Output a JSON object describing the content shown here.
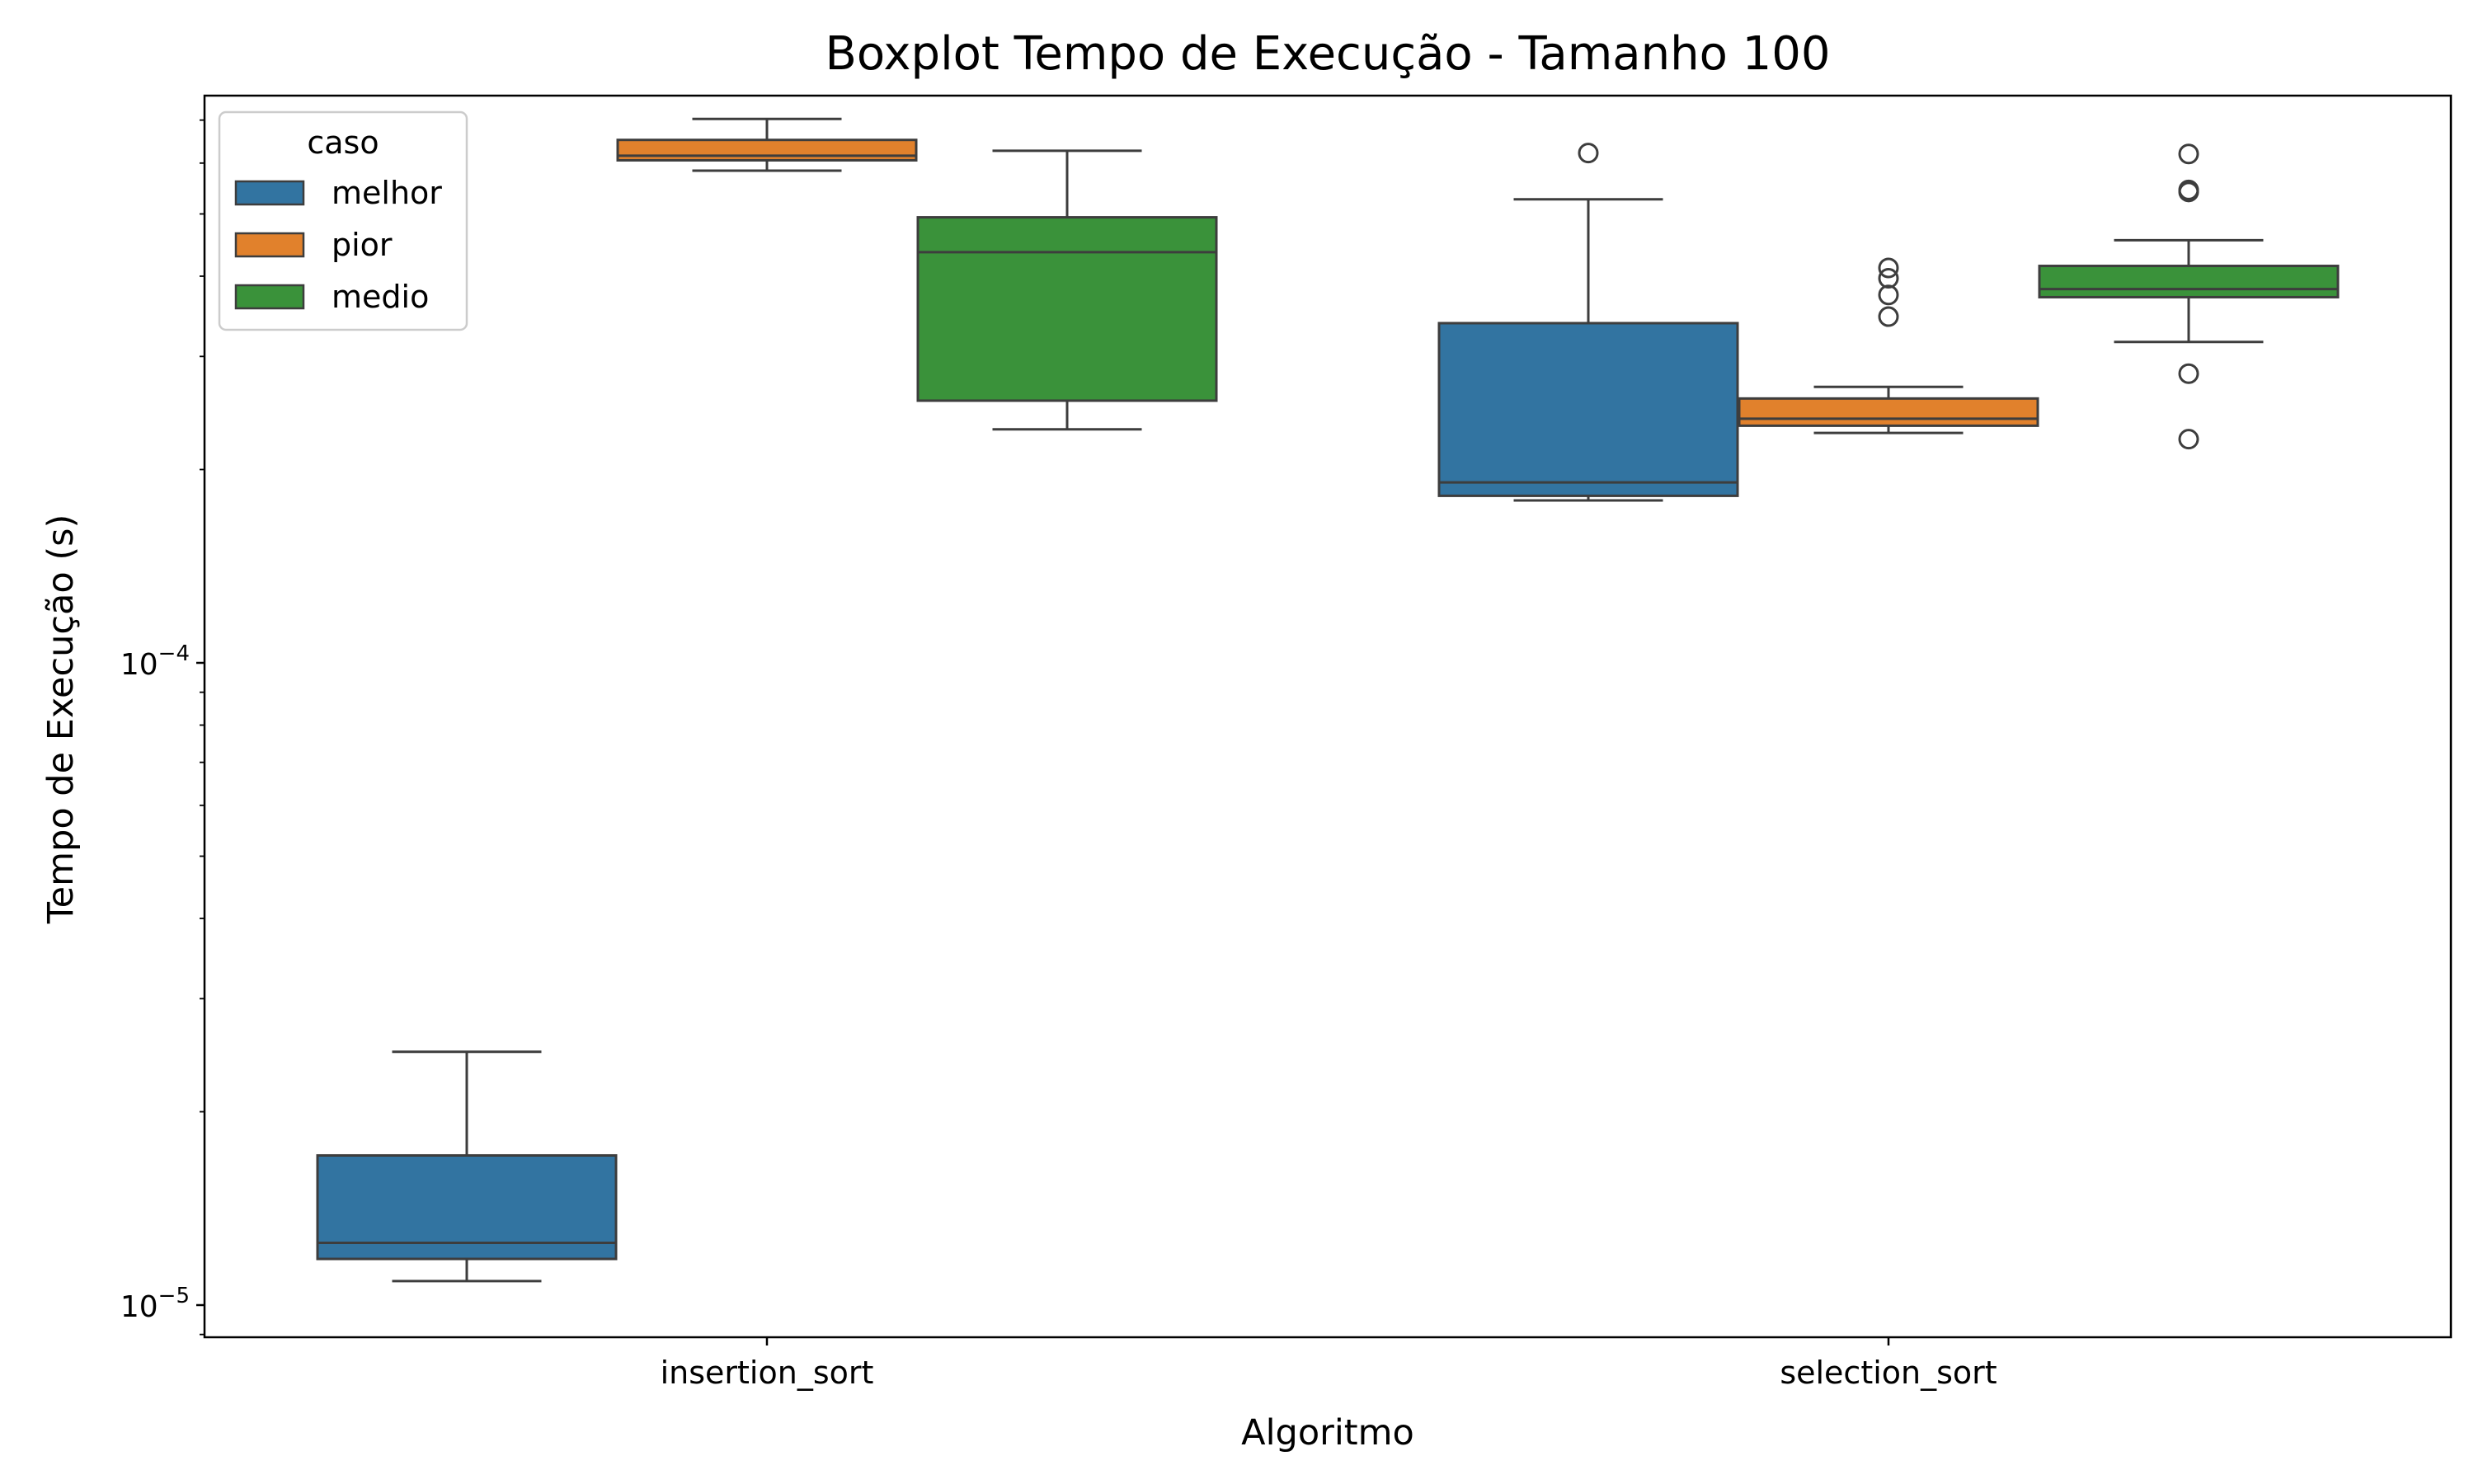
{
  "chart_data": {
    "type": "boxplot",
    "title": "Boxplot Tempo de Execução - Tamanho 100",
    "xlabel": "Algoritmo",
    "ylabel": "Tempo de Execução (s)",
    "yscale": "log",
    "ylim": [
      8.9e-06,
      0.00081
    ],
    "yticks": [
      {
        "value": 1e-05,
        "base": "10",
        "exp": "−5"
      },
      {
        "value": 0.0001,
        "base": "10",
        "exp": "−4"
      }
    ],
    "categories": [
      "insertion_sort",
      "selection_sort"
    ],
    "legend": {
      "title": "caso",
      "position": "upper-left"
    },
    "series": [
      {
        "name": "melhor",
        "color": "#3274a1",
        "boxes": [
          {
            "category": "insertion_sort",
            "whislo": 1.09e-05,
            "q1": 1.18e-05,
            "med": 1.25e-05,
            "q3": 1.71e-05,
            "whishi": 2.48e-05,
            "fliers": []
          },
          {
            "category": "selection_sort",
            "whislo": 0.000179,
            "q1": 0.000182,
            "med": 0.000191,
            "q3": 0.000338,
            "whishi": 0.000527,
            "fliers": [
              0.000622
            ]
          }
        ]
      },
      {
        "name": "pior",
        "color": "#e1812c",
        "boxes": [
          {
            "category": "insertion_sort",
            "whislo": 0.000584,
            "q1": 0.000606,
            "med": 0.000616,
            "q3": 0.000652,
            "whishi": 0.000703,
            "fliers": []
          },
          {
            "category": "selection_sort",
            "whislo": 0.000228,
            "q1": 0.000234,
            "med": 0.00024,
            "q3": 0.000258,
            "whishi": 0.000269,
            "fliers": [
              0.000346,
              0.000374,
              0.000397,
              0.000412
            ]
          }
        ]
      },
      {
        "name": "medio",
        "color": "#3a923a",
        "boxes": [
          {
            "category": "insertion_sort",
            "whislo": 0.000231,
            "q1": 0.000256,
            "med": 0.000436,
            "q3": 0.000494,
            "whishi": 0.000627,
            "fliers": []
          },
          {
            "category": "selection_sort",
            "whislo": 0.000316,
            "q1": 0.000371,
            "med": 0.000382,
            "q3": 0.000415,
            "whishi": 0.000455,
            "fliers": [
              0.000223,
              0.000282,
              0.000541,
              0.000545,
              0.00062
            ]
          }
        ]
      }
    ]
  }
}
